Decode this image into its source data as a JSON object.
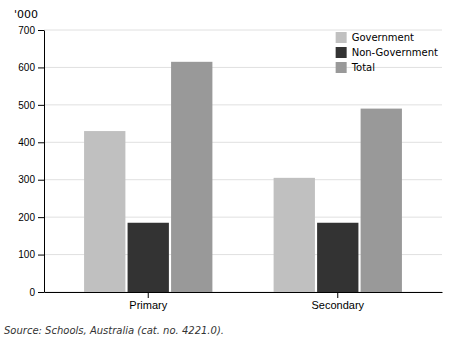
{
  "chart_data": {
    "type": "bar",
    "ylabel": "'000",
    "annotations": [
      "Source: Schools, Australia (cat. no. 4221.0)."
    ],
    "categories": [
      "Primary",
      "Secondary"
    ],
    "series": [
      {
        "name": "Government",
        "color": "#c0c0c0",
        "values": [
          430,
          305
        ]
      },
      {
        "name": "Non-Government",
        "color": "#333333",
        "values": [
          185,
          185
        ]
      },
      {
        "name": "Total",
        "color": "#999999",
        "values": [
          615,
          490
        ]
      }
    ],
    "ylim": [
      0,
      700
    ],
    "yticks": [
      0,
      100,
      200,
      300,
      400,
      500,
      600,
      700
    ],
    "grid": true,
    "legend": "upper right"
  }
}
